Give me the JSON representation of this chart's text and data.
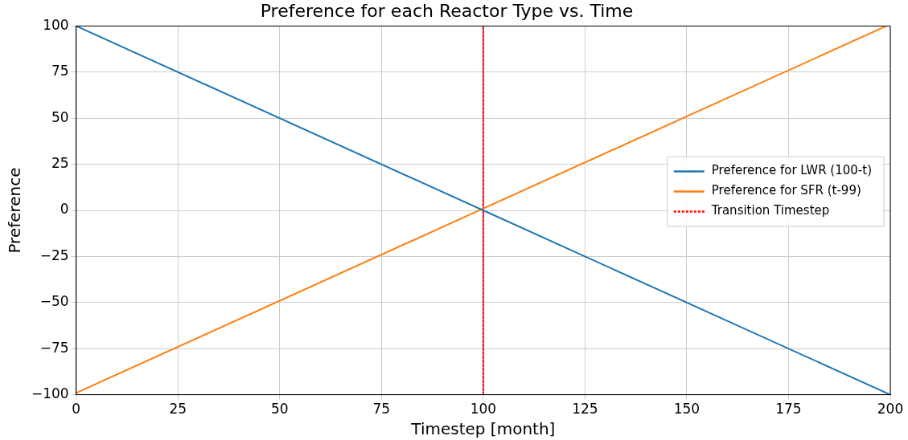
{
  "chart_data": {
    "type": "line",
    "title": "Preference for each Reactor Type vs. Time",
    "xlabel": "Timestep [month]",
    "ylabel": "Preference",
    "x": [
      0,
      100,
      200
    ],
    "series": [
      {
        "name": "Preference for LWR (100-t)",
        "color": "#1f77b4",
        "values": [
          100,
          0,
          -100
        ]
      },
      {
        "name": "Preference for SFR (t-99)",
        "color": "#ff7f0e",
        "x": [
          0,
          100,
          199
        ],
        "values": [
          -99,
          1,
          100
        ]
      },
      {
        "name": "Transition Timestep",
        "color": "#ff0000",
        "x": [
          100,
          100
        ],
        "values": [
          -100,
          100
        ],
        "line_style": "dotted"
      }
    ],
    "xlim": [
      0,
      200
    ],
    "xticks": [
      0,
      25,
      50,
      75,
      100,
      125,
      150,
      175,
      200
    ],
    "ylim": [
      -100,
      100
    ],
    "yticks": [
      -100,
      -75,
      -50,
      -25,
      0,
      25,
      50,
      75,
      100
    ],
    "grid": true,
    "legend": "right",
    "marker": "none",
    "line_style": "solid"
  }
}
